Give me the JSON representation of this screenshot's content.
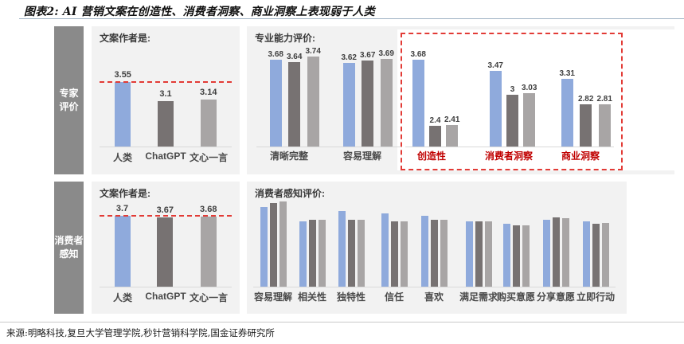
{
  "title": "图表2: AI 营销文案在创造性、消费者洞察、商业洞察上表现弱于人类",
  "source": "来源:明略科技,复旦大学管理学院,秒针营销科学院,国金证券研究所",
  "rows": {
    "expert": {
      "sidebar_label": "专家\n评价"
    },
    "consumer": {
      "sidebar_label": "消费者\n感知"
    }
  },
  "series_names": [
    "人类",
    "ChatGPT",
    "文心一言"
  ],
  "colors": {
    "series": [
      "#8faadc",
      "#777272",
      "#a8a5a5"
    ],
    "panel_bg": "#f2f2f2",
    "sidebar_bg": "#8a8a8a",
    "highlight_red": "#e23b36",
    "red_category_label": "#c00000"
  },
  "chart_data": [
    {
      "id": "expert_author",
      "type": "bar",
      "panel_row": "专家评价",
      "title": "文案作者是:",
      "categories": [
        "人类",
        "ChatGPT",
        "文心一言"
      ],
      "values": [
        3.55,
        3.1,
        3.14
      ],
      "value_labels": [
        "3.55",
        "3.1",
        "3.14"
      ],
      "ylim": [
        2,
        4.3
      ],
      "ref_line": 3.55
    },
    {
      "id": "expert_eval",
      "type": "bar",
      "panel_row": "专家评价",
      "title": "专业能力评价:",
      "categories": [
        "清晰完整",
        "容易理解",
        "创造性",
        "消费者洞察",
        "商业洞察"
      ],
      "series": [
        {
          "name": "人类",
          "values": [
            3.68,
            3.62,
            3.68,
            3.47,
            3.31
          ]
        },
        {
          "name": "ChatGPT",
          "values": [
            3.64,
            3.67,
            2.4,
            3.0,
            2.82
          ]
        },
        {
          "name": "文心一言",
          "values": [
            3.74,
            3.69,
            2.41,
            3.03,
            2.81
          ]
        }
      ],
      "value_labels": [
        [
          "3.68",
          "3.62",
          "3.68",
          "3.47",
          "3.31"
        ],
        [
          "3.64",
          "3.67",
          "2.4",
          "3",
          "2.82"
        ],
        [
          "3.74",
          "3.69",
          "2.41",
          "3.03",
          "2.81"
        ]
      ],
      "highlight_box_categories": [
        "创造性",
        "消费者洞察",
        "商业洞察"
      ],
      "ylim": [
        2,
        3.85
      ]
    },
    {
      "id": "consumer_author",
      "type": "bar",
      "panel_row": "消费者感知",
      "title": "文案作者是:",
      "categories": [
        "人类",
        "ChatGPT",
        "文心一言"
      ],
      "values": [
        3.7,
        3.67,
        3.68
      ],
      "value_labels": [
        "3.7",
        "3.67",
        "3.68"
      ],
      "ylim": [
        2,
        4.3
      ],
      "ref_line": 3.7
    },
    {
      "id": "consumer_eval",
      "type": "bar",
      "panel_row": "消费者感知",
      "title": "消费者感知评价:",
      "categories": [
        "容易理解",
        "相关性",
        "独特性",
        "信任",
        "喜欢",
        "满足需求",
        "购买意愿",
        "分享意愿",
        "立即行动"
      ],
      "series": [
        {
          "name": "人类",
          "values": [
            3.95,
            3.6,
            3.85,
            3.8,
            3.75,
            3.6,
            3.55,
            3.65,
            3.6
          ]
        },
        {
          "name": "ChatGPT",
          "values": [
            4.05,
            3.65,
            3.65,
            3.6,
            3.65,
            3.6,
            3.5,
            3.7,
            3.55
          ]
        },
        {
          "name": "文心一言",
          "values": [
            4.1,
            3.65,
            3.65,
            3.6,
            3.65,
            3.61,
            3.5,
            3.68,
            3.57
          ]
        }
      ],
      "values_are_estimates": true,
      "value_labels_shown": false,
      "ylim": [
        2,
        4.25
      ]
    }
  ]
}
